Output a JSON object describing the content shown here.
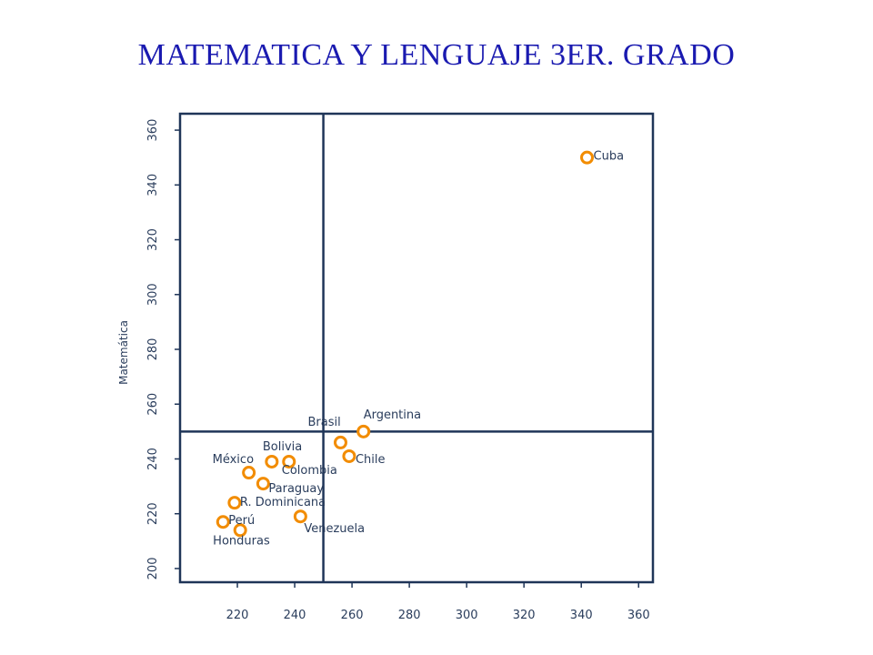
{
  "title": "MATEMATICA Y LENGUAJE 3ER. GRADO",
  "colors": {
    "title": "#1a1ab0",
    "frame": "#1f3558",
    "marker": "#f28c00",
    "text": "#2a3d5c"
  },
  "chart_data": {
    "type": "scatter",
    "title": "MATEMATICA Y LENGUAJE 3ER. GRADO",
    "xlabel": "",
    "ylabel": "Matemática",
    "xlim": [
      200,
      365
    ],
    "ylim": [
      195,
      366
    ],
    "xticks": [
      220,
      240,
      260,
      280,
      300,
      320,
      340,
      360
    ],
    "yticks": [
      200,
      220,
      240,
      260,
      280,
      300,
      320,
      340,
      360
    ],
    "reference_lines": {
      "x": 250,
      "y": 250
    },
    "grid": false,
    "points": [
      {
        "label": "Cuba",
        "x": 342,
        "y": 350
      },
      {
        "label": "Argentina",
        "x": 264,
        "y": 250
      },
      {
        "label": "Brasil",
        "x": 256,
        "y": 246
      },
      {
        "label": "Chile",
        "x": 259,
        "y": 241
      },
      {
        "label": "Bolivia",
        "x": 232,
        "y": 239
      },
      {
        "label": "Colombia",
        "x": 238,
        "y": 239
      },
      {
        "label": "México",
        "x": 224,
        "y": 235
      },
      {
        "label": "Paraguay",
        "x": 229,
        "y": 231
      },
      {
        "label": "R. Dominicana",
        "x": 219,
        "y": 224
      },
      {
        "label": "Venezuela",
        "x": 242,
        "y": 219
      },
      {
        "label": "Perú",
        "x": 215,
        "y": 217
      },
      {
        "label": "Honduras",
        "x": 221,
        "y": 214
      }
    ]
  }
}
